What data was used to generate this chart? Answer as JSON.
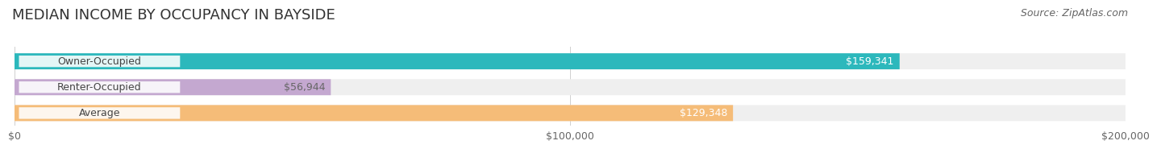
{
  "title": "MEDIAN INCOME BY OCCUPANCY IN BAYSIDE",
  "source": "Source: ZipAtlas.com",
  "categories": [
    "Owner-Occupied",
    "Renter-Occupied",
    "Average"
  ],
  "values": [
    159341,
    56944,
    129348
  ],
  "bar_colors": [
    "#2cb8bc",
    "#c4a8d0",
    "#f5bc78"
  ],
  "bar_labels": [
    "$159,341",
    "$56,944",
    "$129,348"
  ],
  "label_colors": [
    "white",
    "#666666",
    "white"
  ],
  "xlim": [
    0,
    200000
  ],
  "xtick_labels": [
    "$0",
    "$100,000",
    "$200,000"
  ],
  "background_color": "#ffffff",
  "bar_bg_color": "#efefef",
  "title_fontsize": 13,
  "source_fontsize": 9,
  "label_fontsize": 9,
  "cat_fontsize": 9,
  "tick_fontsize": 9
}
